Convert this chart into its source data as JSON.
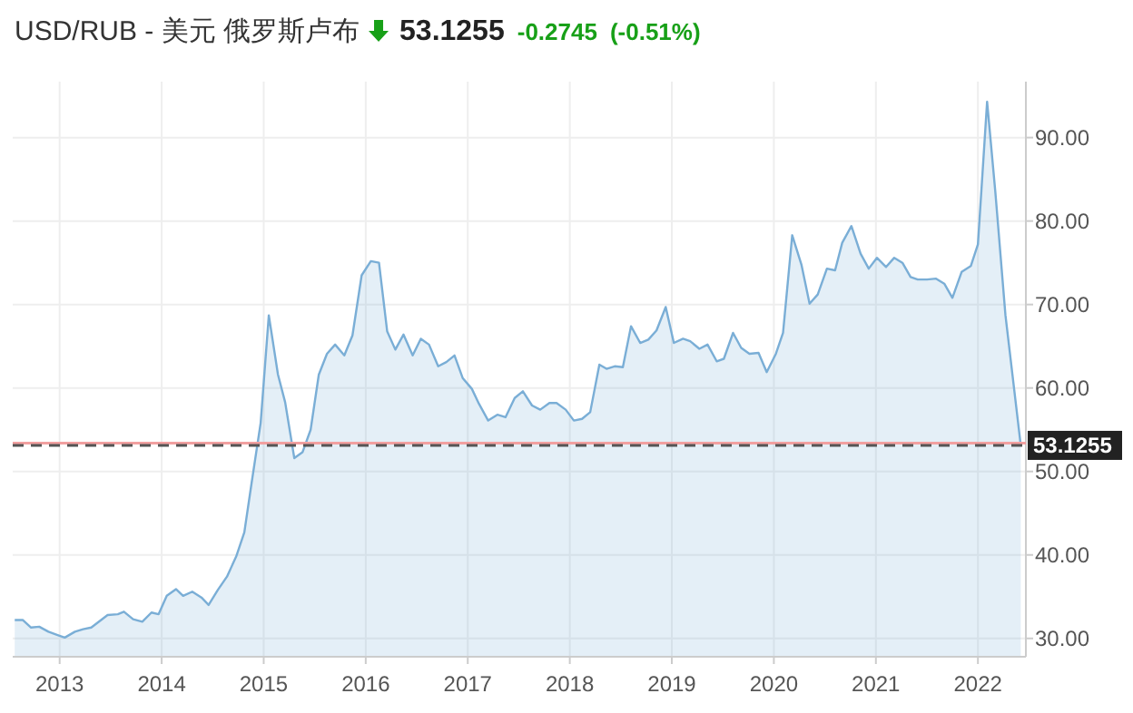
{
  "chart_data": {
    "type": "area",
    "title": "USD/RUB - 美元 俄罗斯卢布",
    "annotations": [
      "53.1255",
      "-0.2745",
      "(-0.51%)"
    ],
    "x": [
      2012.56,
      2012.64,
      2012.72,
      2012.8,
      2012.89,
      2012.98,
      2013.05,
      2013.15,
      2013.23,
      2013.31,
      2013.47,
      2013.57,
      2013.63,
      2013.72,
      2013.81,
      2013.9,
      2013.97,
      2014.05,
      2014.14,
      2014.21,
      2014.3,
      2014.39,
      2014.46,
      2014.55,
      2014.64,
      2014.73,
      2014.81,
      2014.88,
      2014.97,
      2015.05,
      2015.14,
      2015.21,
      2015.3,
      2015.38,
      2015.46,
      2015.54,
      2015.62,
      2015.7,
      2015.79,
      2015.87,
      2015.96,
      2016.05,
      2016.13,
      2016.21,
      2016.29,
      2016.37,
      2016.46,
      2016.54,
      2016.62,
      2016.71,
      2016.79,
      2016.87,
      2016.95,
      2017.04,
      2017.11,
      2017.2,
      2017.29,
      2017.37,
      2017.46,
      2017.54,
      2017.63,
      2017.71,
      2017.8,
      2017.87,
      2017.96,
      2018.04,
      2018.12,
      2018.2,
      2018.29,
      2018.36,
      2018.44,
      2018.52,
      2018.6,
      2018.69,
      2018.77,
      2018.85,
      2018.94,
      2019.02,
      2019.11,
      2019.18,
      2019.27,
      2019.35,
      2019.44,
      2019.51,
      2019.6,
      2019.68,
      2019.76,
      2019.85,
      2019.93,
      2020.02,
      2020.09,
      2020.18,
      2020.27,
      2020.35,
      2020.43,
      2020.52,
      2020.6,
      2020.67,
      2020.76,
      2020.85,
      2020.93,
      2021.01,
      2021.1,
      2021.18,
      2021.26,
      2021.34,
      2021.41,
      2021.5,
      2021.59,
      2021.67,
      2021.75,
      2021.84,
      2021.93,
      2022.0,
      2022.09,
      2022.17,
      2022.27,
      2022.42
    ],
    "series": [
      {
        "color": "#7aaed6",
        "values": [
          32.2,
          32.2,
          31.3,
          31.4,
          30.8,
          30.4,
          30.1,
          30.8,
          31.1,
          31.3,
          32.8,
          32.9,
          33.2,
          32.3,
          32.0,
          33.1,
          32.9,
          35.1,
          35.9,
          35.1,
          35.6,
          34.9,
          34.0,
          35.8,
          37.4,
          39.8,
          42.7,
          48.5,
          55.8,
          68.7,
          61.6,
          58.3,
          51.6,
          52.3,
          55.0,
          61.6,
          64.1,
          65.2,
          63.9,
          66.3,
          73.5,
          75.2,
          75.0,
          66.8,
          64.6,
          66.4,
          63.9,
          65.9,
          65.2,
          62.6,
          63.1,
          63.9,
          61.2,
          59.9,
          58.1,
          56.1,
          56.8,
          56.5,
          58.8,
          59.6,
          57.9,
          57.4,
          58.2,
          58.2,
          57.4,
          56.1,
          56.3,
          57.1,
          62.8,
          62.3,
          62.6,
          62.5,
          67.4,
          65.4,
          65.8,
          66.9,
          69.7,
          65.4,
          65.9,
          65.6,
          64.7,
          65.2,
          63.2,
          63.5,
          66.6,
          64.8,
          64.1,
          64.2,
          61.9,
          64.1,
          66.6,
          78.3,
          74.8,
          70.1,
          71.2,
          74.3,
          74.1,
          77.4,
          79.4,
          76.1,
          74.3,
          75.6,
          74.5,
          75.6,
          75.0,
          73.3,
          73.0,
          73.0,
          73.1,
          72.5,
          70.8,
          73.9,
          74.6,
          77.2,
          94.3,
          83.6,
          68.7,
          53.1
        ]
      }
    ],
    "xlim": [
      2012.54,
      2022.47
    ],
    "ylim": [
      27.8,
      96.7
    ],
    "xticks": [
      2013,
      2014,
      2015,
      2016,
      2017,
      2018,
      2019,
      2020,
      2021,
      2022
    ],
    "yticks": [
      {
        "value": 30,
        "label": "30.00"
      },
      {
        "value": 40,
        "label": "40.00"
      },
      {
        "value": 50,
        "label": "50.00"
      },
      {
        "value": 60,
        "label": "60.00"
      },
      {
        "value": 70,
        "label": "70.00"
      },
      {
        "value": 80,
        "label": "80.00"
      },
      {
        "value": 90,
        "label": "90.00"
      }
    ],
    "ref_lines": [
      {
        "axis": "y",
        "value": 53.4,
        "color": "#f2a0a0",
        "line_style": "solid"
      },
      {
        "axis": "y",
        "value": 53.1255,
        "label": "53.1255",
        "color": "#555555",
        "line_style": "dashed"
      }
    ],
    "grid": true
  }
}
